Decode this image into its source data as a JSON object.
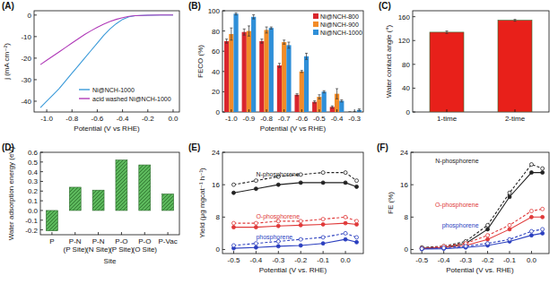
{
  "chart_data": [
    {
      "type": "line",
      "title": "(A)",
      "x_label": "Potential (V vs RHE)",
      "y_label": "j (mA cm⁻²)",
      "x": [
        -1.05,
        -1.0,
        -0.95,
        -0.9,
        -0.85,
        -0.8,
        -0.75,
        -0.7,
        -0.65,
        -0.6,
        -0.55,
        -0.5,
        -0.45,
        -0.4,
        -0.35,
        -0.3,
        -0.2,
        -0.1,
        0
      ],
      "series": [
        {
          "name": "Ni@NCH-1000",
          "color": "#3a9ad9",
          "marker": "none",
          "line_style": "solid",
          "values": [
            -43,
            -40,
            -37,
            -34,
            -30.5,
            -27,
            -23.5,
            -20,
            -16.5,
            -13,
            -9.5,
            -6.5,
            -4,
            -2,
            -0.8,
            -0.3,
            -0.1,
            0,
            0
          ]
        },
        {
          "name": "acid washed Ni@NCH-1000",
          "color": "#b03ab8",
          "marker": "none",
          "line_style": "solid",
          "values": [
            -23,
            -21,
            -19,
            -17,
            -15,
            -13,
            -11,
            -9,
            -7.3,
            -5.7,
            -4.2,
            -3,
            -2,
            -1.2,
            -0.6,
            -0.3,
            -0.1,
            0,
            0
          ]
        }
      ],
      "xlim": [
        -1.1,
        0.05
      ],
      "xticks": [
        {
          "value": -1.0,
          "label": "-1.0"
        },
        -0.8,
        -0.6,
        -0.4,
        -0.2,
        {
          "value": 0,
          "label": "0.0"
        }
      ],
      "ylim": [
        -45,
        2
      ],
      "yticks": [
        0,
        -10,
        -20,
        -30,
        -40
      ],
      "grid": false,
      "legend": "bottom-right"
    },
    {
      "type": "bar",
      "title": "(B)",
      "x_label": "Potential (V vs RHE)",
      "y_label": "FECO (%)",
      "categories": [
        "-1.0",
        "-0.9",
        "-0.8",
        "-0.7",
        "-0.6",
        "-0.5",
        "-0.4",
        "-0.3"
      ],
      "series": [
        {
          "name": "Ni@NCH-800",
          "color": "#d9262e",
          "values": [
            70,
            79,
            70,
            46,
            17,
            10,
            5,
            0
          ],
          "errors": [
            2,
            3,
            2,
            2,
            1,
            1,
            1,
            0
          ]
        },
        {
          "name": "Ni@NCH-900",
          "color": "#f28c28",
          "values": [
            77,
            80,
            81,
            69,
            40,
            15,
            18,
            0
          ],
          "errors": [
            6,
            5,
            3,
            2,
            1,
            2,
            5,
            0
          ]
        },
        {
          "name": "Ni@NCH-1000",
          "color": "#2f8fd8",
          "values": [
            97,
            94,
            83,
            66,
            55,
            20,
            11,
            2
          ],
          "errors": [
            1,
            2,
            1,
            3,
            3,
            1,
            1,
            1
          ]
        }
      ],
      "ylim": [
        0,
        100
      ],
      "yticks": [
        0,
        20,
        40,
        60,
        80,
        100
      ],
      "grid": false,
      "legend": "top-right"
    },
    {
      "type": "bar",
      "title": "(C)",
      "y_label": "Water contact angle (°)",
      "categories": [
        "1-time",
        "2-time"
      ],
      "values": [
        134,
        154
      ],
      "errors": [
        2,
        1.5
      ],
      "color": "#e8201a",
      "ylim": [
        0,
        170
      ],
      "yticks": [
        0,
        40,
        80,
        120,
        160
      ],
      "grid": false
    },
    {
      "type": "bar",
      "title": "(D)",
      "x_label": "Site",
      "y_label": "Water adsorption energy (eV)",
      "categories": [
        "P",
        "P-N (P Site)",
        "P-N (N Site)",
        "P-O (P Site)",
        "P-O (O Site)",
        "P-Vac"
      ],
      "values": [
        -0.21,
        0.24,
        0.21,
        0.52,
        0.47,
        0.17
      ],
      "color": "#5cb85c",
      "ylim": [
        -0.25,
        0.6
      ],
      "yticks": [
        -0.2,
        -0.1,
        {
          "value": 0,
          "label": "0.0"
        },
        0.1,
        0.2,
        0.3,
        0.4,
        0.5,
        0.6
      ],
      "grid": false
    },
    {
      "type": "line",
      "title": "(E)",
      "x_label": "Potential (V vs. RHE)",
      "y_label": "Yield (μg mgcat⁻¹ h⁻¹)",
      "x": [
        -0.5,
        -0.4,
        -0.3,
        -0.2,
        -0.1,
        0,
        0.05
      ],
      "series": [
        {
          "color": "#222222",
          "marker": "circle",
          "line_style": "solid",
          "values": [
            14,
            15,
            16,
            16.5,
            16.5,
            16.5,
            15.5
          ]
        },
        {
          "color": "#222222",
          "marker": "open-circle",
          "line_style": "dashed",
          "values": [
            16,
            17,
            18,
            18.5,
            19,
            19,
            17
          ]
        },
        {
          "color": "#e03a3a",
          "marker": "circle",
          "line_style": "solid",
          "values": [
            5.5,
            5.5,
            5.8,
            6,
            6.2,
            6.5,
            6.2
          ]
        },
        {
          "color": "#e03a3a",
          "marker": "open-circle",
          "line_style": "dashed",
          "values": [
            6.5,
            6.5,
            7,
            7,
            7.5,
            8,
            7
          ]
        },
        {
          "color": "#2b3fbf",
          "marker": "circle",
          "line_style": "solid",
          "values": [
            0.3,
            0.5,
            0.8,
            1,
            1.5,
            2.5,
            1.8
          ]
        },
        {
          "color": "#2b3fbf",
          "marker": "open-circle",
          "line_style": "dashed",
          "values": [
            1,
            1.5,
            2,
            2.5,
            3,
            4,
            3
          ]
        }
      ],
      "annotations": [
        "N-phosphorene",
        "O-phosphorene",
        "phosphorene"
      ],
      "xlim": [
        -0.55,
        0.08
      ],
      "xticks": [
        -0.5,
        -0.4,
        -0.3,
        -0.2,
        -0.1,
        {
          "value": 0,
          "label": "0.0"
        }
      ],
      "ylim": [
        -1,
        24
      ],
      "yticks": [
        0,
        8,
        16,
        24
      ],
      "grid": false
    },
    {
      "type": "line",
      "title": "(F)",
      "x_label": "Potential (V vs. RHE)",
      "y_label": "FE (%)",
      "x": [
        -0.5,
        -0.4,
        -0.3,
        -0.2,
        -0.1,
        0,
        0.05
      ],
      "series": [
        {
          "color": "#222222",
          "marker": "circle",
          "line_style": "solid",
          "values": [
            0.3,
            0.5,
            1.5,
            5,
            13,
            19,
            19
          ]
        },
        {
          "color": "#222222",
          "marker": "open-circle",
          "line_style": "dashed",
          "values": [
            0.5,
            0.8,
            2,
            6,
            14,
            21,
            20
          ]
        },
        {
          "color": "#e03a3a",
          "marker": "circle",
          "line_style": "solid",
          "values": [
            0.2,
            0.5,
            1,
            2.5,
            5,
            8,
            8
          ]
        },
        {
          "color": "#e03a3a",
          "marker": "open-circle",
          "line_style": "dashed",
          "values": [
            0.3,
            0.8,
            1.5,
            3.5,
            6,
            9.5,
            10
          ]
        },
        {
          "color": "#2b3fbf",
          "marker": "circle",
          "line_style": "solid",
          "values": [
            0.1,
            0.2,
            0.5,
            1,
            2,
            3.5,
            4
          ]
        },
        {
          "color": "#2b3fbf",
          "marker": "open-circle",
          "line_style": "dashed",
          "values": [
            0.2,
            0.4,
            0.8,
            1.5,
            2.5,
            4.5,
            5
          ]
        }
      ],
      "annotations": [
        "N-phosphorene",
        "O-phosphorene",
        "phosphorene"
      ],
      "xlim": [
        -0.55,
        0.08
      ],
      "xticks": [
        -0.5,
        -0.4,
        -0.3,
        -0.2,
        -0.1,
        {
          "value": 0,
          "label": "0.0"
        }
      ],
      "ylim": [
        -1,
        24
      ],
      "yticks": [
        0,
        8,
        16,
        24
      ],
      "grid": false
    }
  ]
}
